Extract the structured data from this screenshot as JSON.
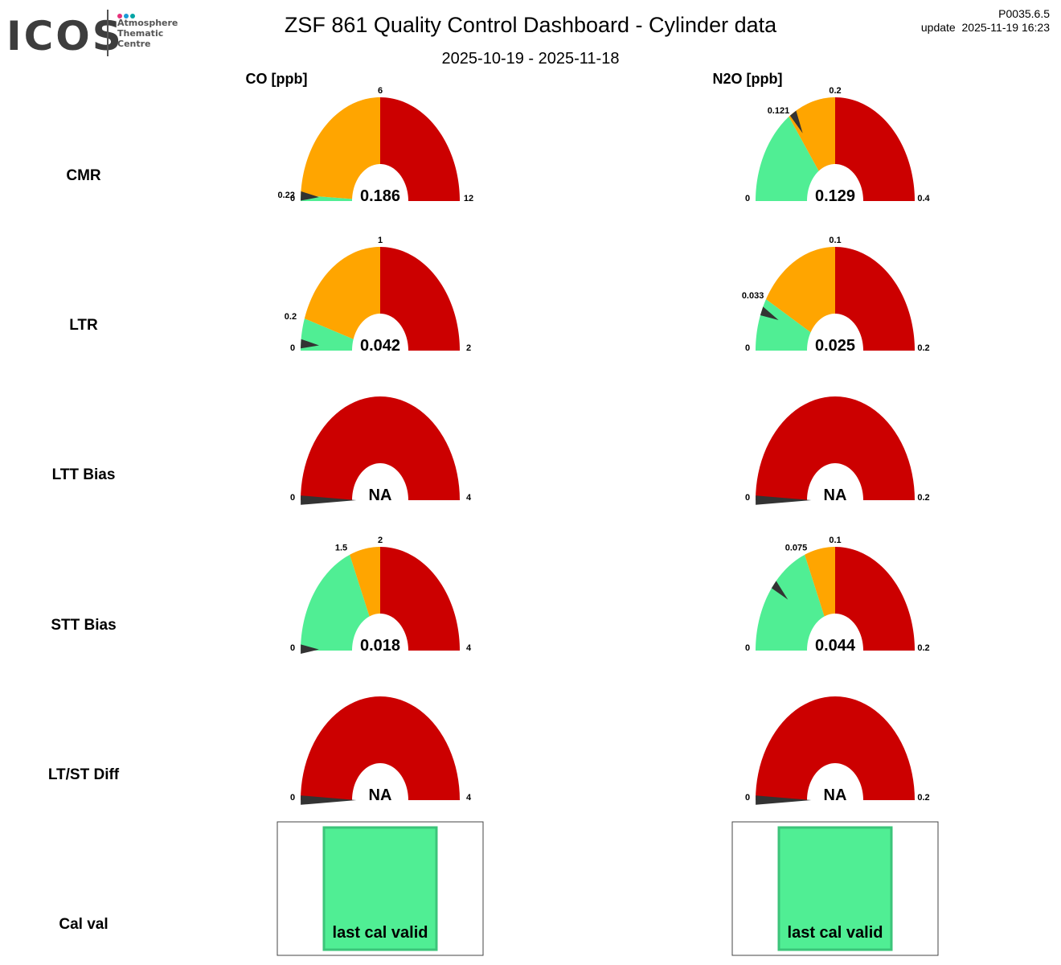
{
  "header": {
    "logo_word": "ICOS",
    "logo_line1": "Atmosphere",
    "logo_line2": "Thematic",
    "logo_line3": "Centre",
    "title": "ZSF 861 Quality Control Dashboard - Cylinder data",
    "period": "2025-10-19 - 2025-11-18",
    "version": "P0035.6.5",
    "update": "update  2025-11-19 16:23"
  },
  "colors": {
    "green": "#50ee94",
    "orange": "#ffa500",
    "red": "#cc0000",
    "needle": "#333333",
    "logo_pink": "#e6317a",
    "logo_blue": "#1b9ad6",
    "logo_teal": "#00a5a5"
  },
  "chart_data": {
    "type": "gauge",
    "columns": [
      "CO [ppb]",
      "N2O [ppb]"
    ],
    "rows": [
      {
        "label": "CMR",
        "gauges": [
          {
            "min": 0,
            "max": 12,
            "green_to": 0.22,
            "orange_to": 6,
            "value": 0.186,
            "display": "0.186",
            "min_label": "0",
            "max_label": "12",
            "green_label": "0.22",
            "orange_label": "6"
          },
          {
            "min": 0,
            "max": 0.4,
            "green_to": 0.121,
            "orange_to": 0.2,
            "value": 0.129,
            "display": "0.129",
            "min_label": "0",
            "max_label": "0.4",
            "green_label": "0.121",
            "orange_label": "0.2"
          }
        ]
      },
      {
        "label": "LTR",
        "gauges": [
          {
            "min": 0,
            "max": 2,
            "green_to": 0.2,
            "orange_to": 1,
            "value": 0.042,
            "display": "0.042",
            "min_label": "0",
            "max_label": "2",
            "green_label": "0.2",
            "orange_label": "1"
          },
          {
            "min": 0,
            "max": 0.2,
            "green_to": 0.033,
            "orange_to": 0.1,
            "value": 0.025,
            "display": "0.025",
            "min_label": "0",
            "max_label": "0.2",
            "green_label": "0.033",
            "orange_label": "0.1"
          }
        ]
      },
      {
        "label": "LTT Bias",
        "gauges": [
          {
            "min": 0,
            "max": 4,
            "green_to": 0,
            "orange_to": 0,
            "value": null,
            "display": "NA",
            "min_label": "0",
            "max_label": "4"
          },
          {
            "min": 0,
            "max": 0.2,
            "green_to": 0,
            "orange_to": 0,
            "value": null,
            "display": "NA",
            "min_label": "0",
            "max_label": "0.2"
          }
        ]
      },
      {
        "label": "STT Bias",
        "gauges": [
          {
            "min": 0,
            "max": 4,
            "green_to": 1.5,
            "orange_to": 2,
            "value": 0.018,
            "display": "0.018",
            "min_label": "0",
            "max_label": "4",
            "green_label": "1.5",
            "orange_label": "2"
          },
          {
            "min": 0,
            "max": 0.2,
            "green_to": 0.075,
            "orange_to": 0.1,
            "value": 0.044,
            "display": "0.044",
            "min_label": "0",
            "max_label": "0.2",
            "green_label": "0.075",
            "orange_label": "0.1"
          }
        ]
      },
      {
        "label": "LT/ST Diff",
        "gauges": [
          {
            "min": 0,
            "max": 4,
            "green_to": 0,
            "orange_to": 0,
            "value": null,
            "display": "NA",
            "min_label": "0",
            "max_label": "4"
          },
          {
            "min": 0,
            "max": 0.2,
            "green_to": 0,
            "orange_to": 0,
            "value": null,
            "display": "NA",
            "min_label": "0",
            "max_label": "0.2"
          }
        ]
      }
    ],
    "calval": {
      "label": "Cal val",
      "boxes": [
        {
          "text": "last cal valid",
          "status": "valid"
        },
        {
          "text": "last cal valid",
          "status": "valid"
        }
      ]
    }
  }
}
